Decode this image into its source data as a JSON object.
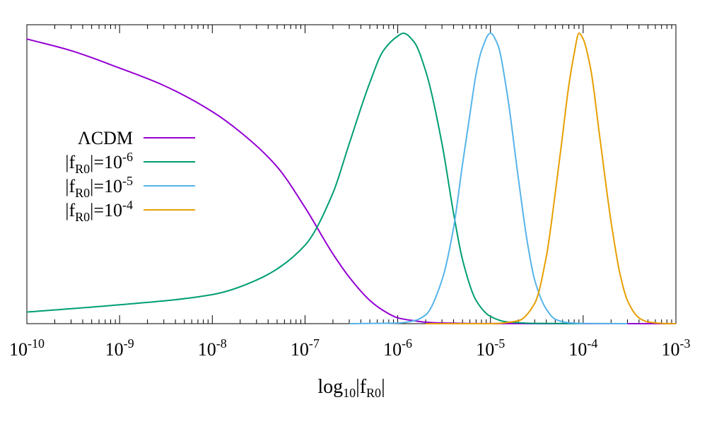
{
  "chart_data": {
    "type": "line",
    "xscale": "log",
    "xlim": [
      1e-10,
      0.001
    ],
    "ylim": [
      0,
      1
    ],
    "grid": false,
    "legend_position": "middle-left",
    "title": "",
    "ylabel": "",
    "xlabel": {
      "base": "log",
      "base_sub": "10",
      "mid": "|f",
      "sub": "R0",
      "end": "|"
    },
    "x_ticks": [
      {
        "value": 1e-10,
        "base": "10",
        "exp": "-10"
      },
      {
        "value": 1e-09,
        "base": "10",
        "exp": "-9"
      },
      {
        "value": 1e-08,
        "base": "10",
        "exp": "-8"
      },
      {
        "value": 1e-07,
        "base": "10",
        "exp": "-7"
      },
      {
        "value": 1e-06,
        "base": "10",
        "exp": "-6"
      },
      {
        "value": 1e-05,
        "base": "10",
        "exp": "-5"
      },
      {
        "value": 0.0001,
        "base": "10",
        "exp": "-4"
      },
      {
        "value": 0.001,
        "base": "10",
        "exp": "-3"
      }
    ],
    "series": [
      {
        "id": "lcdm",
        "name": "ΛCDM",
        "legend": {
          "main": "ΛCDM",
          "sub": "",
          "mid": "",
          "exp": ""
        },
        "color": "#9400d3",
        "x": [
          1e-10,
          3e-10,
          1e-09,
          3e-09,
          1e-08,
          2e-08,
          5e-08,
          1e-07,
          2e-07,
          3e-07,
          5e-07,
          7e-07,
          1e-06,
          1.5e-06,
          2e-06,
          3e-06,
          5e-06,
          1e-05,
          3e-05,
          0.0001,
          0.001
        ],
        "y": [
          0.98,
          0.94,
          0.88,
          0.82,
          0.73,
          0.66,
          0.54,
          0.4,
          0.24,
          0.16,
          0.08,
          0.045,
          0.02,
          0.01,
          0.005,
          0.0025,
          0.001,
          0.0002,
          0.0001,
          0.0001,
          0.0
        ]
      },
      {
        "id": "f6",
        "name": "|fR0|=10^-6",
        "legend": {
          "main": "",
          "pre": "|f",
          "sub": "R0",
          "mid": "|=10",
          "exp": "-6"
        },
        "color": "#009e73",
        "x": [
          1e-10,
          1e-09,
          1e-08,
          3e-08,
          1e-07,
          2e-07,
          3e-07,
          5e-07,
          7e-07,
          1e-06,
          1.15e-06,
          1.5e-06,
          2e-06,
          3e-06,
          4e-06,
          5e-06,
          7e-06,
          1e-05,
          1.5e-05,
          3e-05,
          0.0001
        ],
        "y": [
          0.04,
          0.065,
          0.1,
          0.15,
          0.27,
          0.45,
          0.62,
          0.83,
          0.94,
          0.99,
          1.0,
          0.97,
          0.87,
          0.62,
          0.38,
          0.22,
          0.08,
          0.025,
          0.006,
          0.001,
          0.0
        ]
      },
      {
        "id": "f5",
        "name": "|fR0|=10^-5",
        "legend": {
          "main": "",
          "pre": "|f",
          "sub": "R0",
          "mid": "|=10",
          "exp": "-5"
        },
        "color": "#56b4e9",
        "x": [
          3e-07,
          1e-06,
          1.5e-06,
          2e-06,
          3e-06,
          4e-06,
          5e-06,
          6e-06,
          7e-06,
          8e-06,
          1e-05,
          1.2e-05,
          1.5e-05,
          2e-05,
          2.5e-05,
          3e-05,
          4e-05,
          5e-05,
          7e-05,
          0.0001,
          0.0003
        ],
        "y": [
          0.0,
          0.002,
          0.01,
          0.03,
          0.15,
          0.33,
          0.55,
          0.72,
          0.86,
          0.94,
          1.0,
          0.96,
          0.8,
          0.5,
          0.28,
          0.15,
          0.05,
          0.015,
          0.003,
          0.0005,
          0.0
        ]
      },
      {
        "id": "f4",
        "name": "|fR0|=10^-4",
        "legend": {
          "main": "",
          "pre": "|f",
          "sub": "R0",
          "mid": "|=10",
          "exp": "-4"
        },
        "color": "#e69f00",
        "x": [
          2e-06,
          1e-05,
          2e-05,
          3e-05,
          4e-05,
          5e-05,
          6e-05,
          7e-05,
          8e-05,
          9e-05,
          0.0001,
          0.00012,
          0.00015,
          0.0002,
          0.00025,
          0.0003,
          0.0004,
          0.0005,
          0.0007,
          0.001
        ],
        "y": [
          0.0,
          0.0,
          0.01,
          0.07,
          0.23,
          0.45,
          0.65,
          0.82,
          0.93,
          1.0,
          0.98,
          0.88,
          0.65,
          0.35,
          0.17,
          0.08,
          0.02,
          0.006,
          0.001,
          0.0
        ]
      }
    ]
  }
}
